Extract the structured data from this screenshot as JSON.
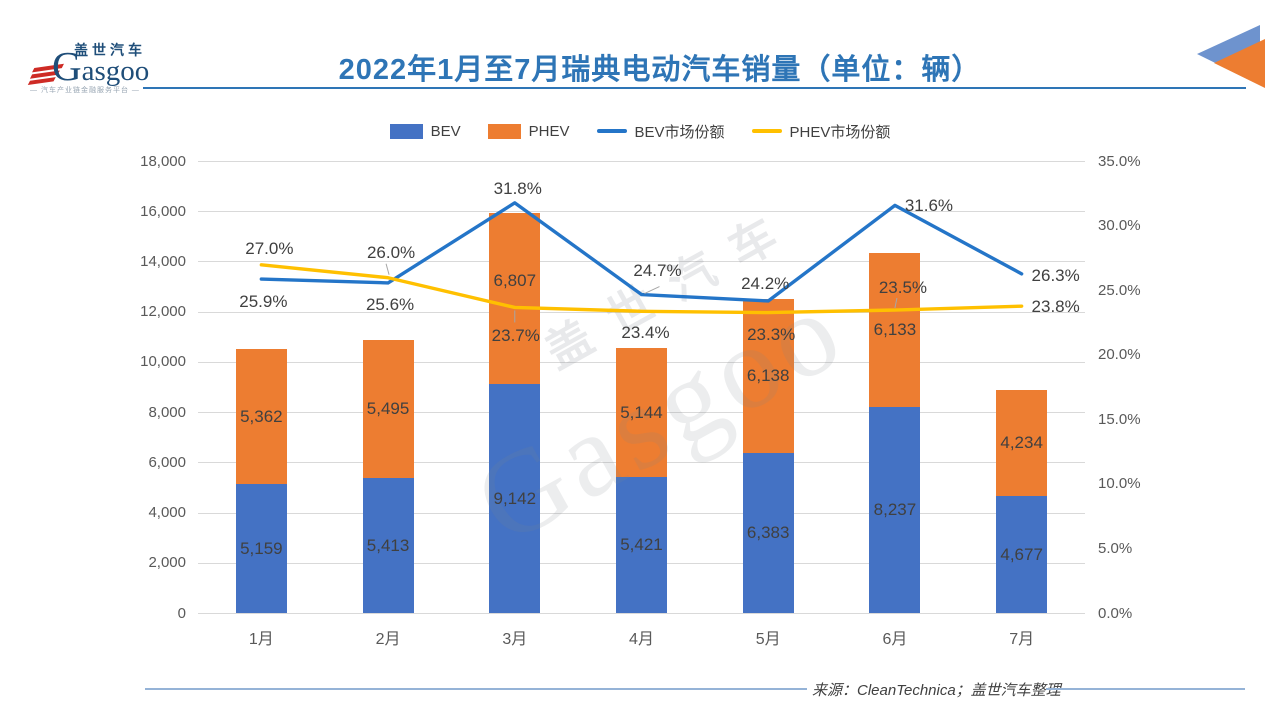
{
  "header": {
    "logo": {
      "cn": "盖世汽车",
      "en": "Gasgoo",
      "tagline": "— 汽车产业链金融服务平台 —"
    },
    "title": "2022年1月至7月瑞典电动汽车销量（单位：辆）"
  },
  "legend": {
    "items": [
      {
        "label": "BEV",
        "type": "swatch",
        "color": "#4472C4"
      },
      {
        "label": "PHEV",
        "type": "swatch",
        "color": "#ED7D31"
      },
      {
        "label": "BEV市场份额",
        "type": "line",
        "color": "#2475C8"
      },
      {
        "label": "PHEV市场份额",
        "type": "line",
        "color": "#FFC000"
      }
    ]
  },
  "chart_data": {
    "type": "combo-stacked-bar-line",
    "categories": [
      "1月",
      "2月",
      "3月",
      "4月",
      "5月",
      "6月",
      "7月"
    ],
    "bar_series": [
      {
        "name": "BEV",
        "color": "#4472C4",
        "values": [
          5159,
          5413,
          9142,
          5421,
          6383,
          8237,
          4677
        ],
        "labels": [
          "5,159",
          "5,413",
          "9,142",
          "5,421",
          "6,383",
          "8,237",
          "4,677"
        ]
      },
      {
        "name": "PHEV",
        "color": "#ED7D31",
        "values": [
          5362,
          5495,
          6807,
          5144,
          6138,
          6133,
          4234
        ],
        "labels": [
          "5,362",
          "5,495",
          "6,807",
          "5,144",
          "6,138",
          "6,133",
          "4,234"
        ]
      }
    ],
    "line_series": [
      {
        "name": "BEV市场份额",
        "color": "#2475C8",
        "values": [
          25.9,
          25.6,
          31.8,
          24.7,
          24.2,
          31.6,
          26.3
        ],
        "labels": [
          "25.9%",
          "25.6%",
          "31.8%",
          "24.7%",
          "24.2%",
          "31.6%",
          "26.3%"
        ]
      },
      {
        "name": "PHEV市场份额",
        "color": "#FFC000",
        "values": [
          27.0,
          26.0,
          23.7,
          23.4,
          23.3,
          23.5,
          23.8
        ],
        "labels": [
          "27.0%",
          "26.0%",
          "23.7%",
          "23.4%",
          "23.3%",
          "23.5%",
          "23.8%"
        ]
      }
    ],
    "left_axis": {
      "min": 0,
      "max": 18000,
      "step": 2000,
      "ticks": [
        "18,000",
        "16,000",
        "14,000",
        "12,000",
        "10,000",
        "8,000",
        "6,000",
        "4,000",
        "2,000",
        "0"
      ]
    },
    "right_axis": {
      "min": 0,
      "max": 35,
      "step": 5,
      "ticks": [
        "35.0%",
        "30.0%",
        "25.0%",
        "20.0%",
        "15.0%",
        "10.0%",
        "5.0%",
        "0.0%"
      ]
    },
    "grid": true,
    "legend_position": "top",
    "grid_color": "#D9D9D9"
  },
  "watermark": {
    "cn": "盖世汽车",
    "en": "Gasgoo"
  },
  "footer": {
    "source": "来源：CleanTechnica；盖世汽车整理"
  }
}
